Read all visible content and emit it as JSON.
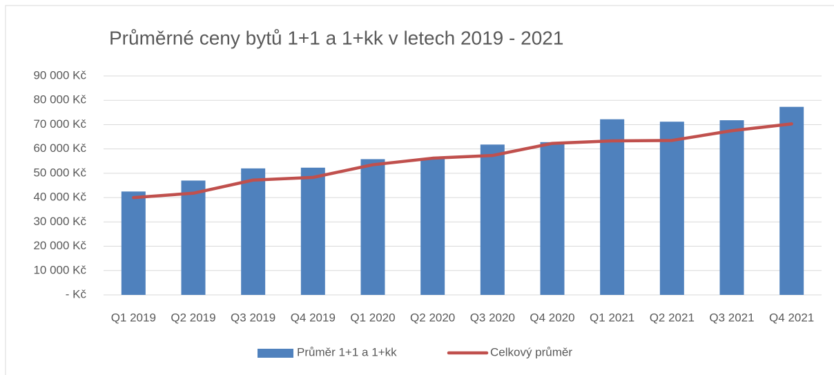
{
  "chart_data": {
    "type": "bar",
    "title": "Průměrné ceny bytů 1+1 a 1+kk v letech 2019 - 2021",
    "categories": [
      "Q1 2019",
      "Q2 2019",
      "Q3 2019",
      "Q4 2019",
      "Q1 2020",
      "Q2 2020",
      "Q3 2020",
      "Q4 2020",
      "Q1 2021",
      "Q2 2021",
      "Q3 2021",
      "Q4 2021"
    ],
    "series": [
      {
        "name": "Průměr 1+1 a 1+kk",
        "type": "bar",
        "color": "#4f81bd",
        "values": [
          42500,
          47000,
          52000,
          52300,
          55800,
          56000,
          61800,
          62800,
          72200,
          71200,
          71800,
          77300
        ]
      },
      {
        "name": "Celkový průměr",
        "type": "line",
        "color": "#c0504d",
        "values": [
          40000,
          41800,
          47200,
          48300,
          53500,
          56200,
          57300,
          62300,
          63300,
          63500,
          67500,
          70300
        ]
      }
    ],
    "ylim": [
      0,
      90000
    ],
    "yticks": [
      {
        "value": 0,
        "label": "- Kč"
      },
      {
        "value": 10000,
        "label": "10 000 Kč"
      },
      {
        "value": 20000,
        "label": "20 000 Kč"
      },
      {
        "value": 30000,
        "label": "30 000 Kč"
      },
      {
        "value": 40000,
        "label": "40 000 Kč"
      },
      {
        "value": 50000,
        "label": "50 000 Kč"
      },
      {
        "value": 60000,
        "label": "60 000 Kč"
      },
      {
        "value": 70000,
        "label": "70 000 Kč"
      },
      {
        "value": 80000,
        "label": "80 000 Kč"
      },
      {
        "value": 90000,
        "label": "90 000 Kč"
      }
    ],
    "grid": true,
    "legend": "bottom"
  }
}
